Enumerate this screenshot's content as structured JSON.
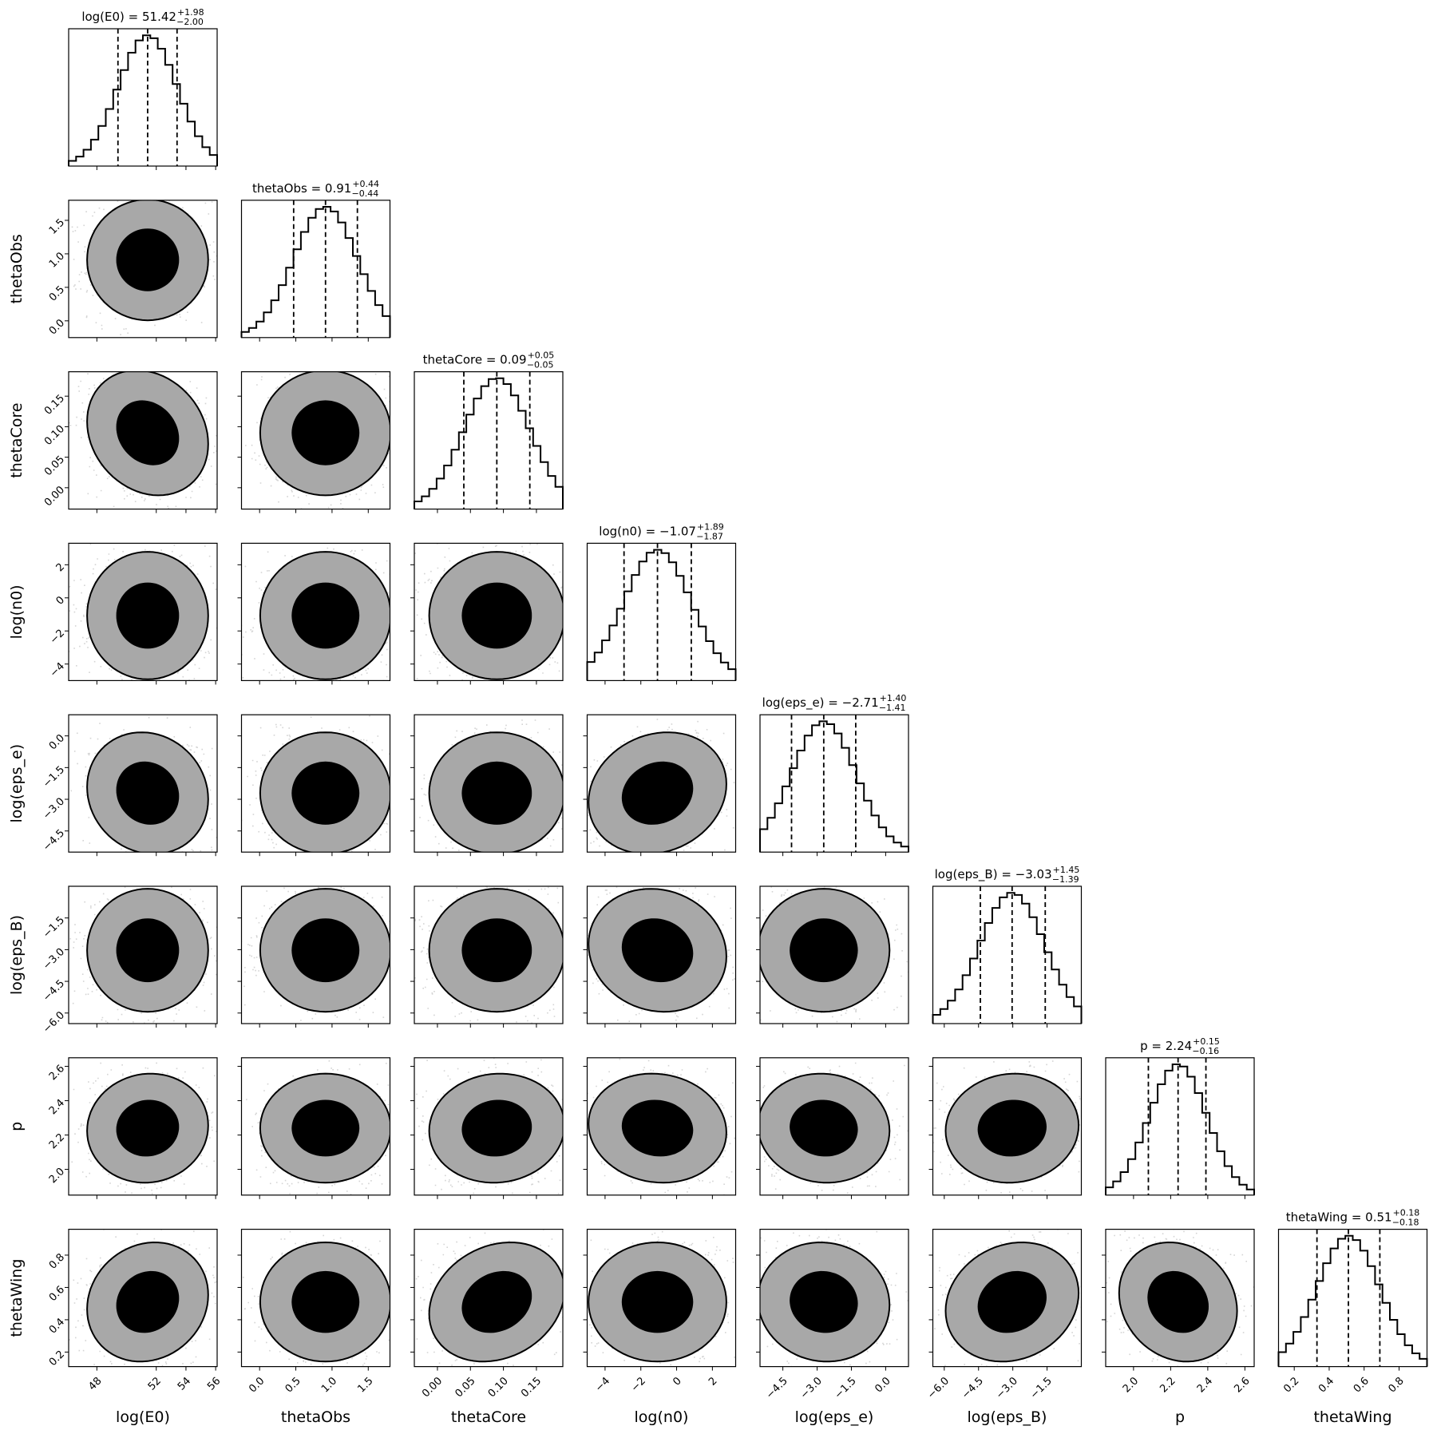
{
  "chart_data": {
    "type": "corner",
    "parameters": [
      {
        "label": "log(E0)",
        "median": "51.42",
        "plus": "+1.98",
        "minus": "−2.00",
        "q": [
          49.42,
          51.42,
          53.4
        ],
        "range": [
          46.1,
          56.1
        ],
        "ticks": [
          48,
          52,
          54,
          56
        ],
        "tick_labels": [
          "48",
          "52",
          "54",
          "56"
        ]
      },
      {
        "label": "thetaObs",
        "median": "0.91",
        "plus": "+0.44",
        "minus": "−0.44",
        "q": [
          0.47,
          0.91,
          1.35
        ],
        "range": [
          -0.25,
          1.8
        ],
        "ticks": [
          0.0,
          0.5,
          1.0,
          1.5
        ],
        "tick_labels": [
          "0.0",
          "0.5",
          "1.0",
          "1.5"
        ]
      },
      {
        "label": "thetaCore",
        "median": "0.09",
        "plus": "+0.05",
        "minus": "−0.05",
        "q": [
          0.04,
          0.09,
          0.14
        ],
        "range": [
          -0.035,
          0.19
        ],
        "ticks": [
          0.0,
          0.05,
          0.1,
          0.15
        ],
        "tick_labels": [
          "0.00",
          "0.05",
          "0.10",
          "0.15"
        ]
      },
      {
        "label": "log(n0)",
        "median": "−1.07",
        "plus": "+1.89",
        "minus": "−1.87",
        "q": [
          -2.94,
          -1.07,
          0.82
        ],
        "range": [
          -5.0,
          3.3
        ],
        "ticks": [
          -4,
          -2,
          0,
          2
        ],
        "tick_labels": [
          "−4",
          "−2",
          "0",
          "2"
        ]
      },
      {
        "label": "log(eps_e)",
        "median": "−2.71",
        "plus": "+1.40",
        "minus": "−1.41",
        "q": [
          -4.12,
          -2.71,
          -1.31
        ],
        "range": [
          -5.5,
          1.0
        ],
        "ticks": [
          -4.5,
          -3.0,
          -1.5,
          0.0
        ],
        "tick_labels": [
          "−4.5",
          "−3.0",
          "−1.5",
          "0.0"
        ]
      },
      {
        "label": "log(eps_B)",
        "median": "−3.03",
        "plus": "+1.45",
        "minus": "−1.39",
        "q": [
          -4.42,
          -3.03,
          -1.58
        ],
        "range": [
          -6.5,
          0.0
        ],
        "ticks": [
          -6.0,
          -4.5,
          -3.0,
          -1.5
        ],
        "tick_labels": [
          "−6.0",
          "−4.5",
          "−3.0",
          "−1.5"
        ]
      },
      {
        "label": "p",
        "median": "2.24",
        "plus": "+0.15",
        "minus": "−0.16",
        "q": [
          2.08,
          2.24,
          2.39
        ],
        "range": [
          1.85,
          2.65
        ],
        "ticks": [
          2.0,
          2.2,
          2.4,
          2.6
        ],
        "tick_labels": [
          "2.0",
          "2.2",
          "2.4",
          "2.6"
        ]
      },
      {
        "label": "thetaWing",
        "median": "0.51",
        "plus": "+0.18",
        "minus": "−0.18",
        "q": [
          0.33,
          0.51,
          0.69
        ],
        "range": [
          0.11,
          0.96
        ],
        "ticks": [
          0.2,
          0.4,
          0.6,
          0.8
        ],
        "tick_labels": [
          "0.2",
          "0.4",
          "0.6",
          "0.8"
        ]
      }
    ],
    "histogram": {
      "bins": 20,
      "style": "step",
      "color": "#000000",
      "quantile_lines": "dashed"
    },
    "contours": {
      "levels": 2,
      "outer_fill": "#a8a8a8",
      "inner_fill": "#000000",
      "line_color": "#000000"
    },
    "correlations": [
      [
        1.0,
        0.0,
        -0.18,
        0.0,
        -0.1,
        0.0,
        0.05,
        0.12
      ],
      [
        0.0,
        1.0,
        0.0,
        0.0,
        0.0,
        0.0,
        0.0,
        0.0
      ],
      [
        -0.18,
        0.0,
        1.0,
        0.0,
        0.0,
        0.0,
        0.05,
        0.2
      ],
      [
        0.0,
        0.0,
        0.0,
        1.0,
        0.15,
        -0.1,
        -0.08,
        0.0
      ],
      [
        -0.1,
        0.0,
        0.0,
        0.15,
        1.0,
        0.0,
        -0.05,
        -0.05
      ],
      [
        0.0,
        0.0,
        0.0,
        -0.1,
        0.0,
        1.0,
        0.05,
        0.15
      ],
      [
        0.05,
        0.0,
        0.05,
        -0.08,
        -0.05,
        0.05,
        1.0,
        -0.15
      ],
      [
        0.12,
        0.0,
        0.2,
        0.0,
        -0.05,
        0.15,
        -0.15,
        1.0
      ]
    ],
    "scatter_color": "#b0b0b0"
  }
}
